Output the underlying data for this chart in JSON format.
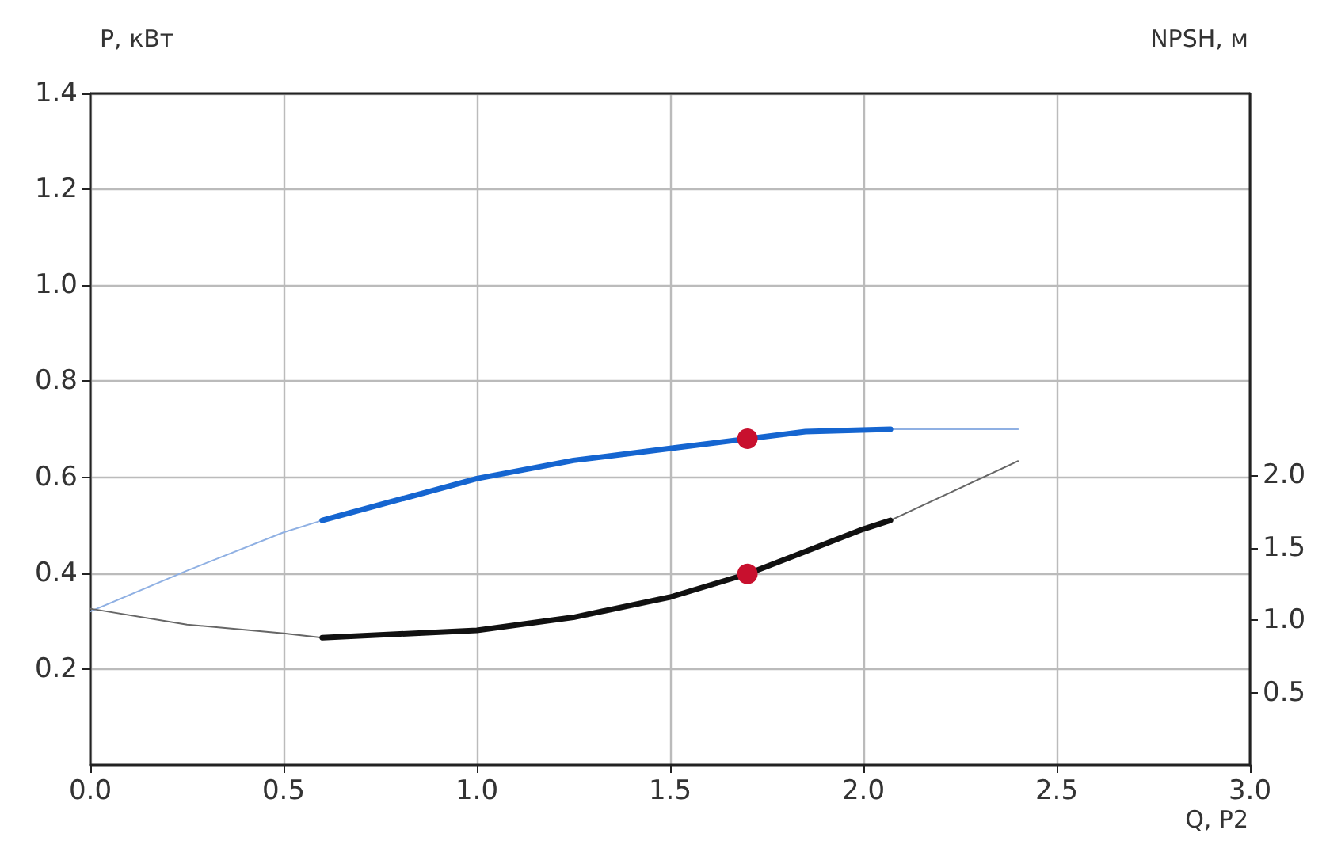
{
  "chart_data": {
    "type": "line",
    "xlabel": "Q, P2",
    "ylabel": "P, кВт",
    "y2label": "NPSH, м",
    "xlim": [
      0,
      3
    ],
    "xticks": [
      {
        "value": 0,
        "label": "0.0"
      },
      0.5,
      {
        "value": 1,
        "label": "1.0"
      },
      1.5,
      {
        "value": 2,
        "label": "2.0"
      },
      2.5,
      {
        "value": 3,
        "label": "3.0"
      }
    ],
    "ylim": [
      0,
      1.4
    ],
    "yticks": [
      0.2,
      0.4,
      0.6,
      0.8,
      {
        "value": 1,
        "label": "1.0"
      },
      1.2,
      1.4
    ],
    "y2lim": [
      0,
      4.64
    ],
    "y2ticks": [
      0.5,
      {
        "value": 1,
        "label": "1.0"
      },
      1.5,
      {
        "value": 2,
        "label": "2.0"
      }
    ],
    "grid": true,
    "marker": "none",
    "line_style": "solid",
    "series": [
      {
        "color": "#8fb0e3",
        "x": [
          0,
          0.25,
          0.5,
          0.6,
          1.3,
          2.07,
          2.4
        ],
        "values": [
          0.32,
          0.405,
          0.485,
          0.51,
          null,
          0.7,
          0.7
        ]
      },
      {
        "color": "#1565d0",
        "x": [
          0.6,
          1.0,
          1.25,
          1.5,
          1.7,
          1.85,
          2.07
        ],
        "values": [
          0.51,
          0.597,
          0.635,
          0.66,
          0.68,
          0.695,
          0.7
        ]
      },
      {
        "color": "#666666",
        "axis": "y2",
        "x": [
          0,
          0.25,
          0.5,
          0.6,
          1.3,
          2.07,
          2.4
        ],
        "values": [
          1.08,
          0.97,
          0.91,
          0.88,
          null,
          1.69,
          2.1
        ]
      },
      {
        "color": "#111111",
        "axis": "y2",
        "x": [
          0.6,
          1.0,
          1.25,
          1.5,
          1.7,
          2.0,
          2.07
        ],
        "values": [
          0.88,
          0.93,
          1.02,
          1.16,
          1.32,
          1.63,
          1.69
        ]
      },
      {
        "type": "scatter",
        "marker": "circle",
        "color": "#c8102e",
        "x": [
          1.7
        ],
        "values": [
          0.68
        ]
      },
      {
        "type": "scatter",
        "marker": "circle",
        "color": "#c8102e",
        "axis": "y2",
        "x": [
          1.7
        ],
        "values": [
          1.32
        ]
      }
    ]
  }
}
